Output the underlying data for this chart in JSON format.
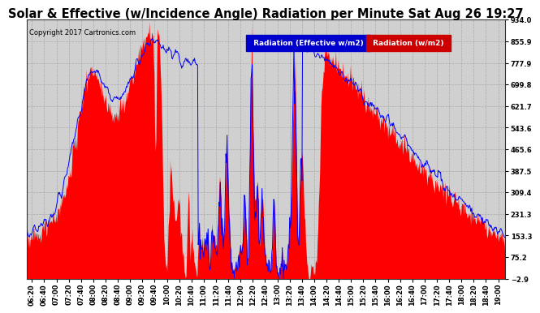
{
  "title": "Solar & Effective (w/Incidence Angle) Radiation per Minute Sat Aug 26 19:27",
  "copyright": "Copyright 2017 Cartronics.com",
  "legend1": "Radiation (Effective w/m2)",
  "legend2": "Radiation (w/m2)",
  "legend1_bg": "#0000cc",
  "legend2_bg": "#cc0000",
  "yticks": [
    934.0,
    855.9,
    777.9,
    699.8,
    621.7,
    543.6,
    465.6,
    387.5,
    309.4,
    231.3,
    153.3,
    75.2,
    -2.9
  ],
  "ymin": -2.9,
  "ymax": 934.0,
  "bg_color": "#ffffff",
  "plot_bg": "#ffffff",
  "red_fill": "#ff0000",
  "blue_line": "#0000ff",
  "grid_color": "#ffffff",
  "title_fontsize": 10.5,
  "tick_fontsize": 6,
  "copyright_fontsize": 6,
  "legend_fontsize": 6.5
}
